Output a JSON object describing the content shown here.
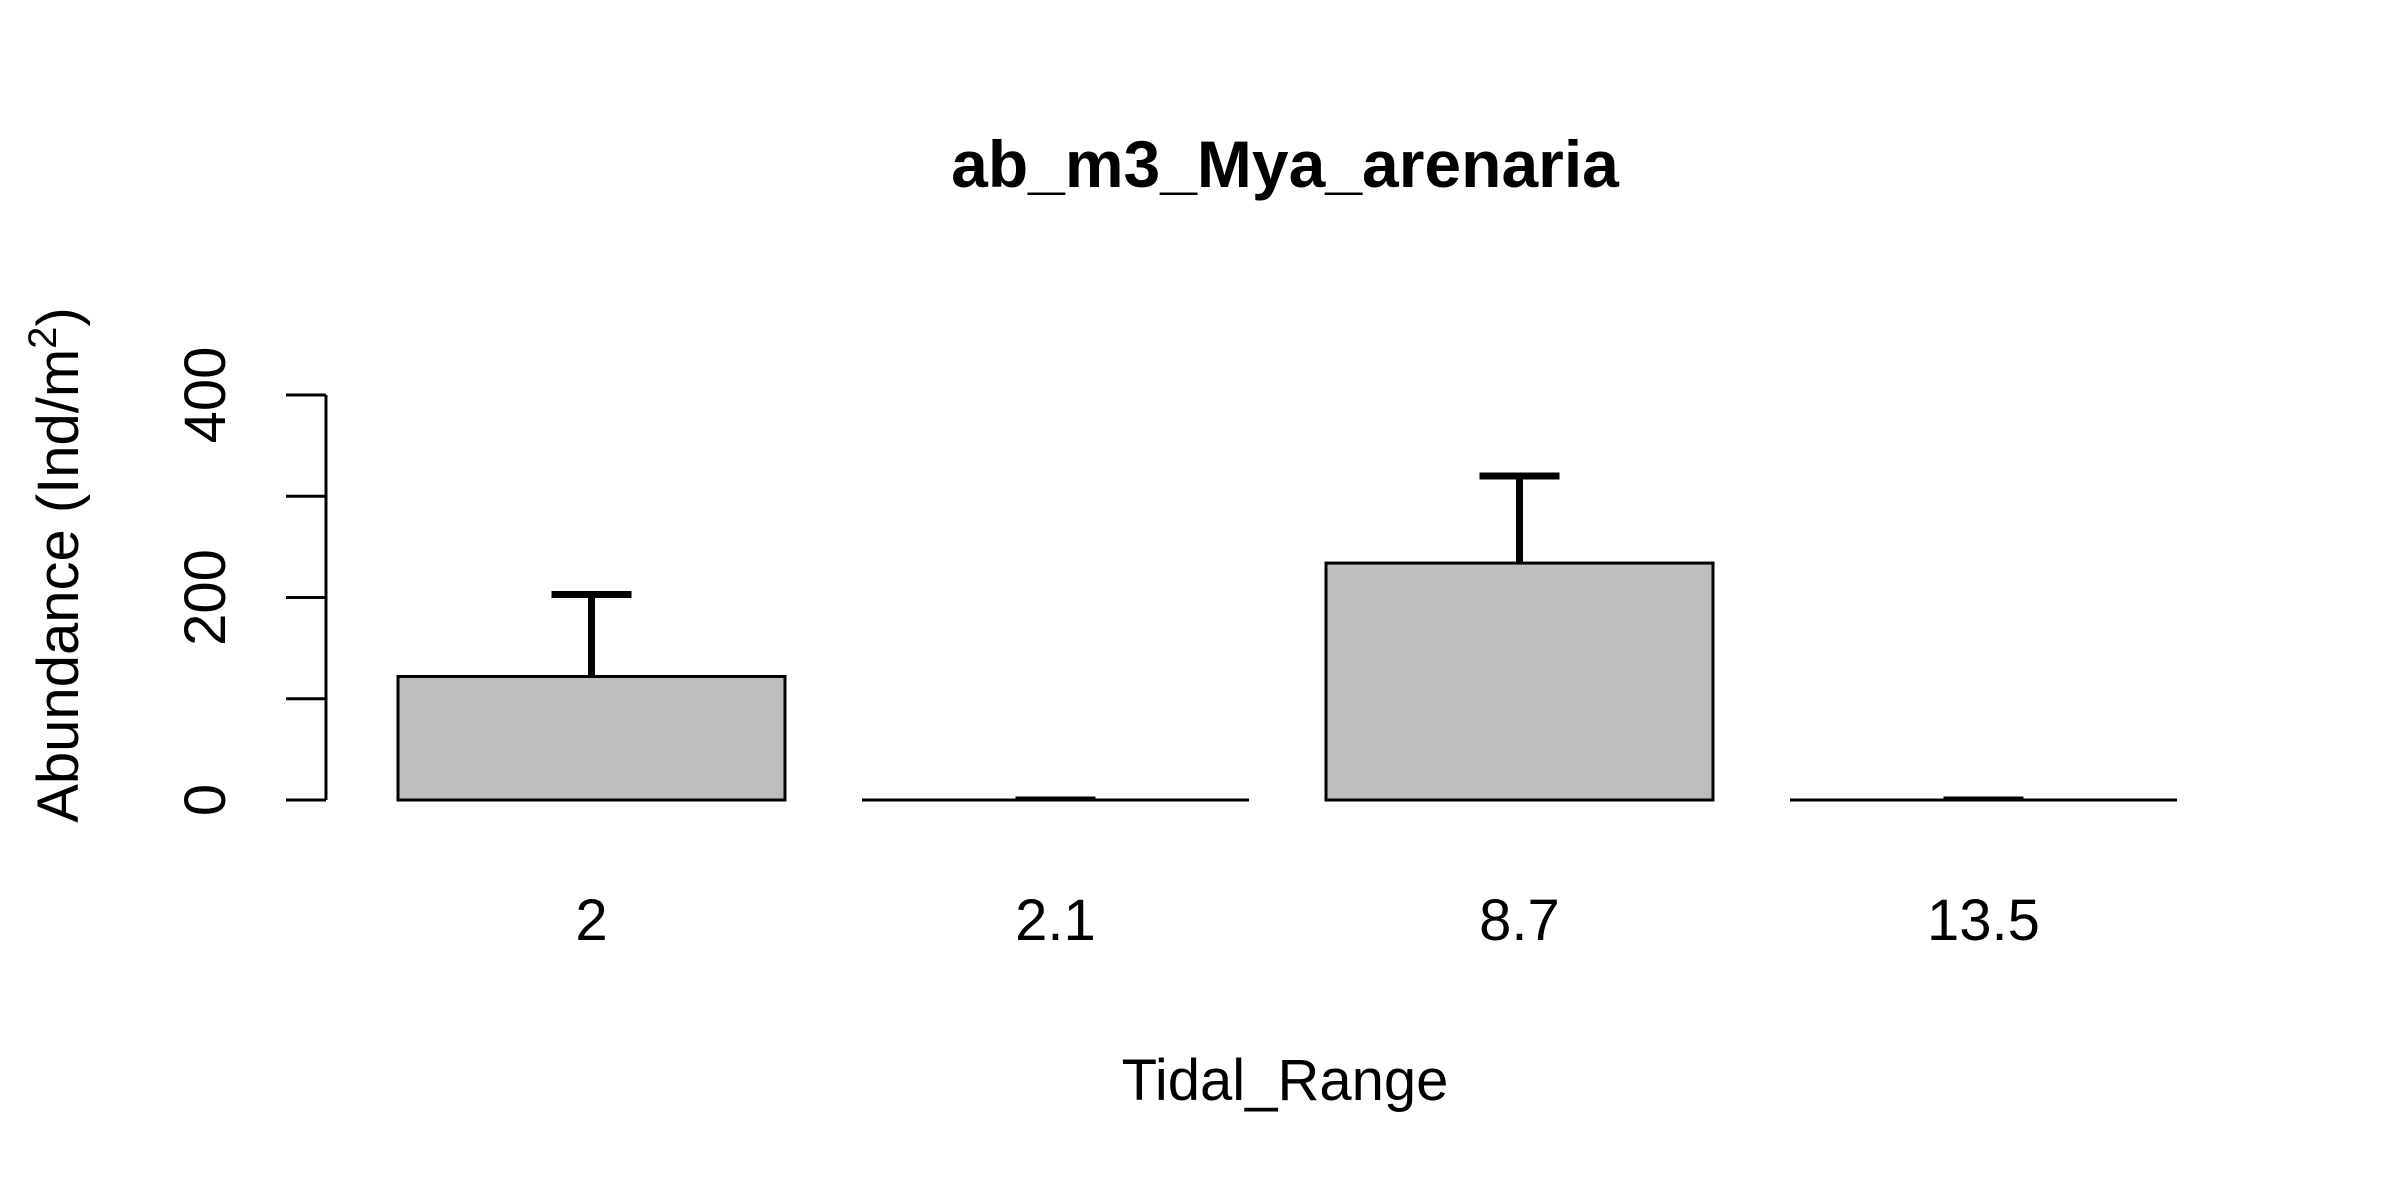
{
  "chart_data": {
    "type": "bar",
    "title": "ab_m3_Mya_arenaria",
    "xlabel": "Tidal_Range",
    "ylabel": "Abundance (Ind/m",
    "ylabel_superscript": "2",
    "ylabel_close": ")",
    "categories": [
      "2",
      "2.1",
      "8.7",
      "13.5"
    ],
    "values": [
      122,
      0,
      234,
      0
    ],
    "error_upper": [
      203,
      0,
      320,
      0
    ],
    "ylim": [
      0,
      400
    ],
    "yticks": [
      0,
      100,
      200,
      300,
      400
    ],
    "ytick_labels": [
      "0",
      "",
      "200",
      "",
      "400"
    ],
    "bar_color": "#bebebe",
    "grid": false,
    "legend": "none"
  }
}
